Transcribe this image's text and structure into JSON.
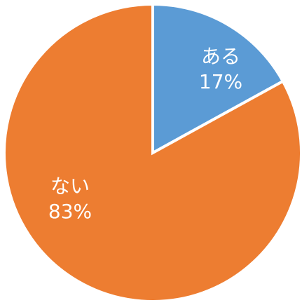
{
  "chart_data": {
    "type": "pie",
    "categories": [
      "ある",
      "ない"
    ],
    "values": [
      17,
      83
    ],
    "value_labels": [
      "17%",
      "83%"
    ],
    "colors": [
      "#5b9bd5",
      "#ed7d31"
    ]
  }
}
